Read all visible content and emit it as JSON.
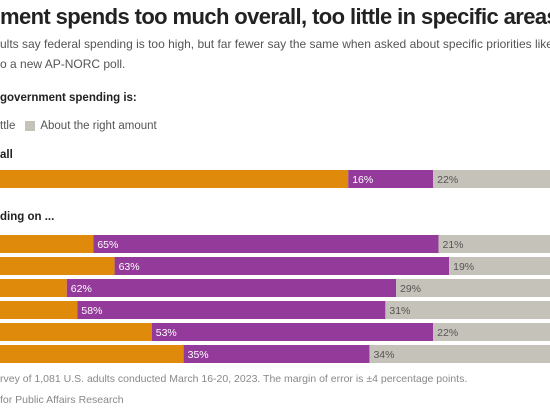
{
  "header": {
    "title": "ment spends too much overall, too little in specific areas",
    "subtitle_line1": "ults say federal spending is too high, but far fewer say the same when asked about specific priorities like edu",
    "subtitle_line2": "o a new AP-NORC poll.",
    "question": "government spending is:"
  },
  "legend": {
    "partial_label": "ttle",
    "right_amount_label": "About the right amount"
  },
  "colors": {
    "too_much": "#E08A0B",
    "too_little": "#933A9A",
    "about_right": "#C4C2B9"
  },
  "chart_data": {
    "type": "bar",
    "orientation": "horizontal",
    "stacked": true,
    "group_labels": [
      "all",
      "ding on ..."
    ],
    "groups": [
      {
        "label": "all",
        "bars": [
          {
            "too_little": "16%",
            "about_right": "22%",
            "too_little_value": 16,
            "about_right_value": 22
          }
        ]
      },
      {
        "label": "ding on ...",
        "bars": [
          {
            "too_little": "65%",
            "about_right": "21%",
            "too_little_value": 65,
            "about_right_value": 21
          },
          {
            "too_little": "63%",
            "about_right": "19%",
            "too_little_value": 63,
            "about_right_value": 19
          },
          {
            "too_little": "62%",
            "about_right": "29%",
            "too_little_value": 62,
            "about_right_value": 29
          },
          {
            "too_little": "58%",
            "about_right": "31%",
            "too_little_value": 58,
            "about_right_value": 31
          },
          {
            "too_little": "53%",
            "about_right": "22%",
            "too_little_value": 53,
            "about_right_value": 22
          },
          {
            "too_little": "35%",
            "about_right": "34%",
            "too_little_value": 35,
            "about_right_value": 34
          }
        ]
      }
    ]
  },
  "footer": {
    "note": "rvey of 1,081 U.S. adults conducted March 16-20, 2023. The margin of error is ±4 percentage points.",
    "source": "for Public Affairs Research"
  }
}
